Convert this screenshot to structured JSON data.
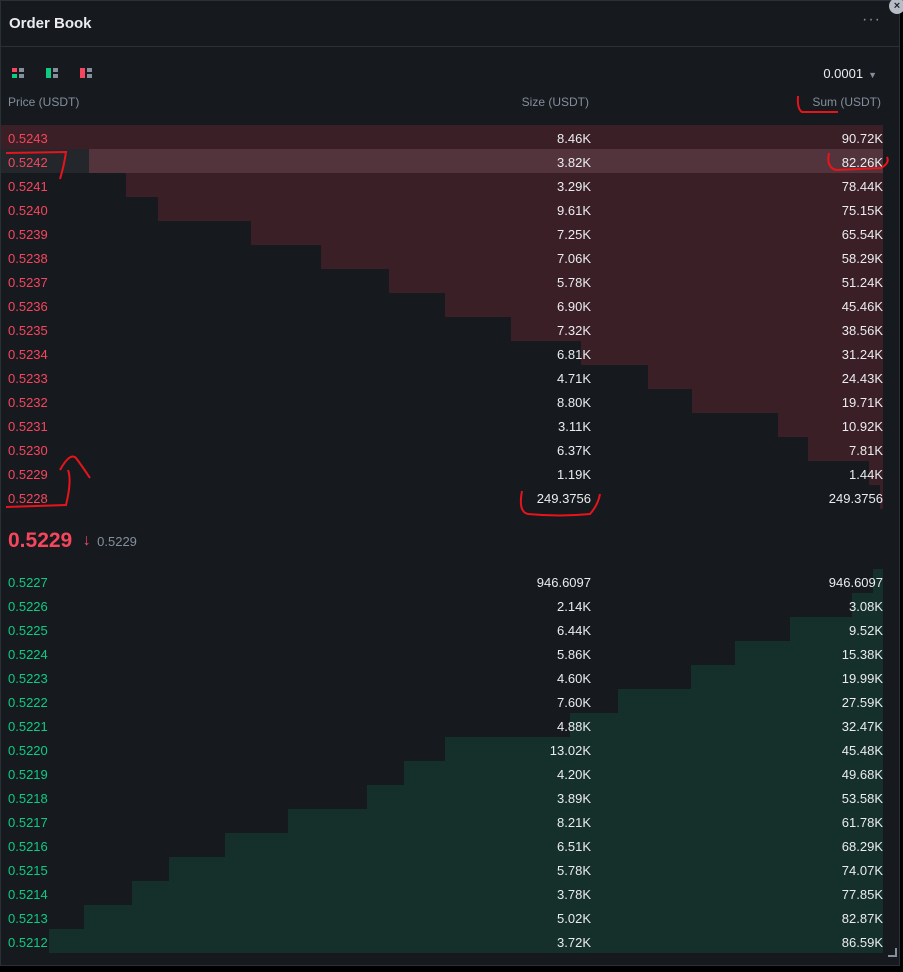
{
  "header": {
    "title": "Order Book",
    "more_icon": "more-icon",
    "close_icon": "close-icon"
  },
  "toolbar": {
    "precision": "0.0001"
  },
  "columns": {
    "price": "Price (USDT)",
    "size": "Size (USDT)",
    "sum": "Sum (USDT)"
  },
  "colors": {
    "ask": "#f6465d",
    "bid": "#0ecb81",
    "ask_depth": "#3a1f26",
    "bid_depth": "#15302b"
  },
  "asks": [
    {
      "price": "0.5243",
      "size": "8.46K",
      "sum": "90.72K",
      "depth": 1.0
    },
    {
      "price": "0.5242",
      "size": "3.82K",
      "sum": "82.26K",
      "depth": 0.9
    },
    {
      "price": "0.5241",
      "size": "3.29K",
      "sum": "78.44K",
      "depth": 0.858
    },
    {
      "price": "0.5240",
      "size": "9.61K",
      "sum": "75.15K",
      "depth": 0.822
    },
    {
      "price": "0.5239",
      "size": "7.25K",
      "sum": "65.54K",
      "depth": 0.717
    },
    {
      "price": "0.5238",
      "size": "7.06K",
      "sum": "58.29K",
      "depth": 0.637
    },
    {
      "price": "0.5237",
      "size": "5.78K",
      "sum": "51.24K",
      "depth": 0.56
    },
    {
      "price": "0.5236",
      "size": "6.90K",
      "sum": "45.46K",
      "depth": 0.497
    },
    {
      "price": "0.5235",
      "size": "7.32K",
      "sum": "38.56K",
      "depth": 0.422
    },
    {
      "price": "0.5234",
      "size": "6.81K",
      "sum": "31.24K",
      "depth": 0.342
    },
    {
      "price": "0.5233",
      "size": "4.71K",
      "sum": "24.43K",
      "depth": 0.267
    },
    {
      "price": "0.5232",
      "size": "8.80K",
      "sum": "19.71K",
      "depth": 0.216
    },
    {
      "price": "0.5231",
      "size": "3.11K",
      "sum": "10.92K",
      "depth": 0.119
    },
    {
      "price": "0.5230",
      "size": "6.37K",
      "sum": "7.81K",
      "depth": 0.085
    },
    {
      "price": "0.5229",
      "size": "1.19K",
      "sum": "1.44K",
      "depth": 0.016
    },
    {
      "price": "0.5228",
      "size": "249.3756",
      "sum": "249.3756",
      "depth": 0.003
    }
  ],
  "mid": {
    "price": "0.5229",
    "mark": "0.5229",
    "arrow": "↓"
  },
  "bids": [
    {
      "price": "0.5227",
      "size": "946.6097",
      "sum": "946.6097",
      "depth": 0.011
    },
    {
      "price": "0.5226",
      "size": "2.14K",
      "sum": "3.08K",
      "depth": 0.035
    },
    {
      "price": "0.5225",
      "size": "6.44K",
      "sum": "9.52K",
      "depth": 0.105
    },
    {
      "price": "0.5224",
      "size": "5.86K",
      "sum": "15.38K",
      "depth": 0.168
    },
    {
      "price": "0.5223",
      "size": "4.60K",
      "sum": "19.99K",
      "depth": 0.218
    },
    {
      "price": "0.5222",
      "size": "7.60K",
      "sum": "27.59K",
      "depth": 0.301
    },
    {
      "price": "0.5221",
      "size": "4.88K",
      "sum": "32.47K",
      "depth": 0.355
    },
    {
      "price": "0.5220",
      "size": "13.02K",
      "sum": "45.48K",
      "depth": 0.497
    },
    {
      "price": "0.5219",
      "size": "4.20K",
      "sum": "49.68K",
      "depth": 0.543
    },
    {
      "price": "0.5218",
      "size": "3.89K",
      "sum": "53.58K",
      "depth": 0.585
    },
    {
      "price": "0.5217",
      "size": "8.21K",
      "sum": "61.78K",
      "depth": 0.675
    },
    {
      "price": "0.5216",
      "size": "6.51K",
      "sum": "68.29K",
      "depth": 0.746
    },
    {
      "price": "0.5215",
      "size": "5.78K",
      "sum": "74.07K",
      "depth": 0.81
    },
    {
      "price": "0.5214",
      "size": "3.78K",
      "sum": "77.85K",
      "depth": 0.851
    },
    {
      "price": "0.5213",
      "size": "5.02K",
      "sum": "82.87K",
      "depth": 0.906
    },
    {
      "price": "0.5212",
      "size": "3.72K",
      "sum": "86.59K",
      "depth": 0.946
    }
  ]
}
